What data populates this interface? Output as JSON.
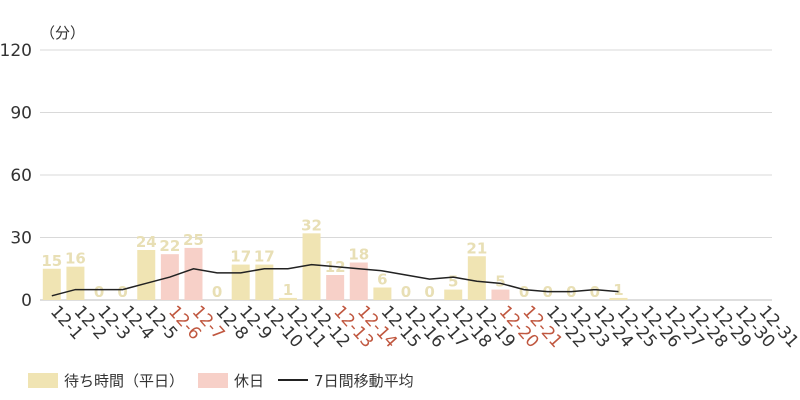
{
  "chart_data": {
    "type": "bar",
    "unit_label": "（分）",
    "ylim": [
      0,
      120
    ],
    "yticks": [
      0,
      30,
      60,
      90,
      120
    ],
    "grid": true,
    "legend_position": "bottom-left",
    "categories": [
      "12-1",
      "12-2",
      "12-3",
      "12-4",
      "12-5",
      "12-6",
      "12-7",
      "12-8",
      "12-9",
      "12-10",
      "12-11",
      "12-12",
      "12-13",
      "12-14",
      "12-15",
      "12-16",
      "12-17",
      "12-18",
      "12-19",
      "12-20",
      "12-21",
      "12-22",
      "12-23",
      "12-24",
      "12-25",
      "12-26",
      "12-27",
      "12-28",
      "12-29",
      "12-30",
      "12-31"
    ],
    "holidays": [
      "12-6",
      "12-7",
      "12-13",
      "12-14",
      "12-20",
      "12-21"
    ],
    "values": [
      15,
      16,
      0,
      0,
      24,
      22,
      25,
      0,
      17,
      17,
      1,
      32,
      12,
      18,
      6,
      0,
      0,
      5,
      21,
      5,
      0,
      0,
      0,
      0,
      1,
      null,
      null,
      null,
      null,
      null,
      null
    ],
    "moving_average": [
      2,
      5,
      5,
      5,
      8,
      11,
      15,
      13,
      13,
      15,
      15,
      17,
      16,
      15,
      14,
      12,
      10,
      11,
      9,
      8,
      5,
      4,
      4,
      5,
      4,
      null,
      null,
      null,
      null,
      null,
      null
    ],
    "series": [
      {
        "name": "待ち時間（平日）",
        "color": "#f0e4b3"
      },
      {
        "name": "休日",
        "color": "#f7d0c8"
      },
      {
        "name": "7日間移動平均",
        "color": "#222222"
      }
    ],
    "colors": {
      "holiday_label": "#c0573f",
      "data_label": "#e8dfb5",
      "grid": "#d9d9d9"
    }
  }
}
